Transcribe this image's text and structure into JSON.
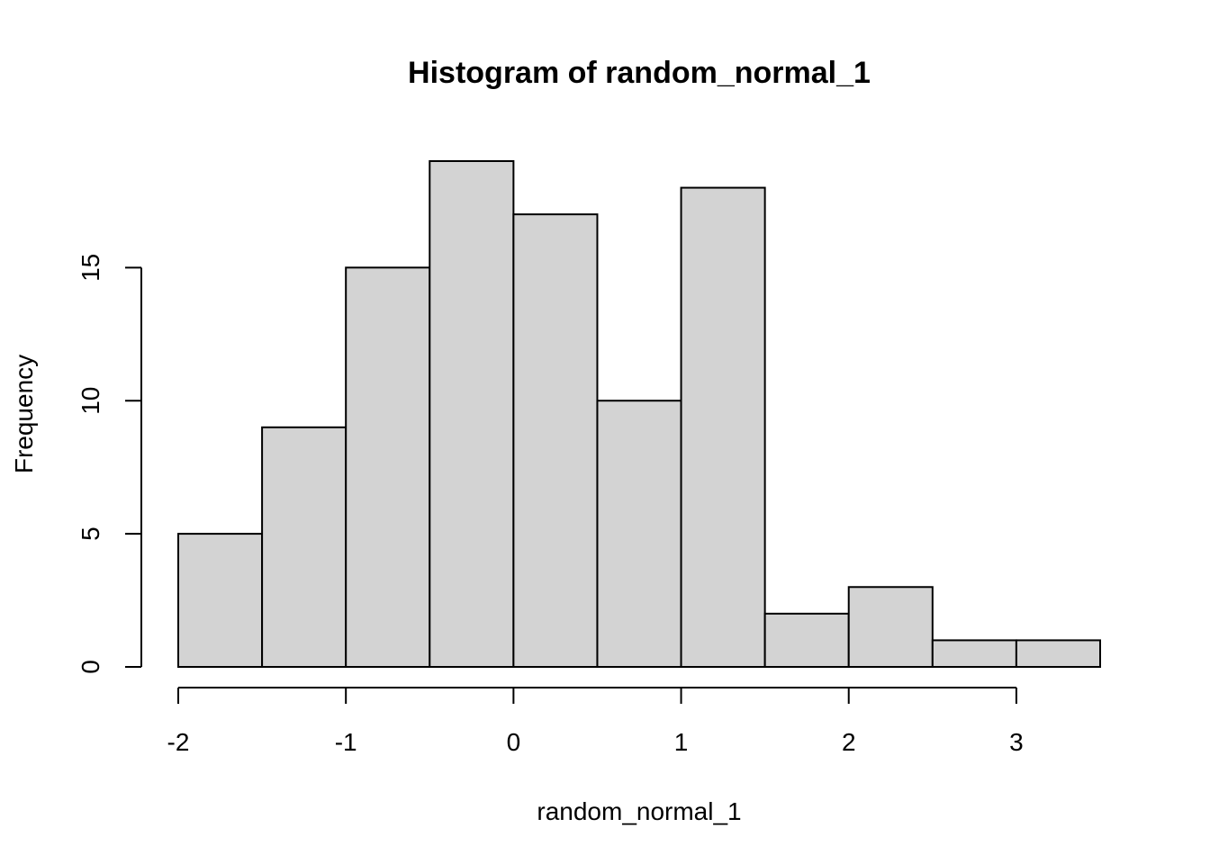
{
  "chart_data": {
    "type": "bar",
    "title": "Histogram of random_normal_1",
    "xlabel": "random_normal_1",
    "ylabel": "Frequency",
    "bins": [
      {
        "start": -2.0,
        "end": -1.5,
        "count": 5
      },
      {
        "start": -1.5,
        "end": -1.0,
        "count": 9
      },
      {
        "start": -1.0,
        "end": -0.5,
        "count": 15
      },
      {
        "start": -0.5,
        "end": 0.0,
        "count": 19
      },
      {
        "start": 0.0,
        "end": 0.5,
        "count": 17
      },
      {
        "start": 0.5,
        "end": 1.0,
        "count": 10
      },
      {
        "start": 1.0,
        "end": 1.5,
        "count": 18
      },
      {
        "start": 1.5,
        "end": 2.0,
        "count": 2
      },
      {
        "start": 2.0,
        "end": 2.5,
        "count": 3
      },
      {
        "start": 2.5,
        "end": 3.0,
        "count": 1
      },
      {
        "start": 3.0,
        "end": 3.5,
        "count": 1
      }
    ],
    "xlim": [
      -2,
      3.5
    ],
    "ylim": [
      0,
      19
    ],
    "x_ticks": [
      {
        "value": -2,
        "label": "-2"
      },
      {
        "value": -1,
        "label": "-1"
      },
      {
        "value": 0,
        "label": "0"
      },
      {
        "value": 1,
        "label": "1"
      },
      {
        "value": 2,
        "label": "2"
      },
      {
        "value": 3,
        "label": "3"
      }
    ],
    "y_ticks": [
      {
        "value": 0,
        "label": "0"
      },
      {
        "value": 5,
        "label": "5"
      },
      {
        "value": 10,
        "label": "10"
      },
      {
        "value": 15,
        "label": "15"
      }
    ],
    "grid": false,
    "legend": "none",
    "colors": {
      "bar_fill": "#d3d3d3",
      "bar_stroke": "#000000",
      "axis": "#000000",
      "background": "#ffffff"
    }
  }
}
